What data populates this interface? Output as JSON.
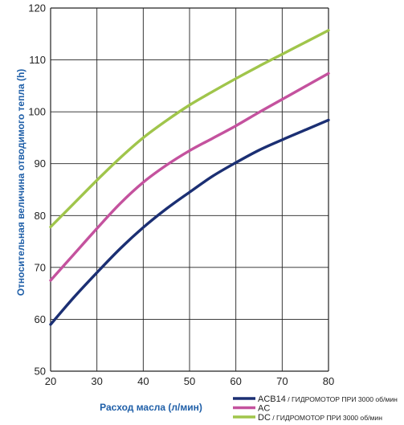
{
  "colors": {
    "axis_title": "#1f5fa8",
    "grid": "#222222",
    "background": "#ffffff"
  },
  "chart_data": {
    "type": "line",
    "title": "",
    "xlabel": "Расход  масла  (л/мин)",
    "ylabel": "Относительная величина отводимого тепла (h)",
    "xlim": [
      20,
      80
    ],
    "ylim": [
      50,
      120
    ],
    "xticks": [
      20,
      30,
      40,
      50,
      60,
      70,
      80
    ],
    "yticks": [
      50,
      60,
      70,
      80,
      90,
      100,
      110,
      120
    ],
    "x": [
      20,
      25,
      30,
      35,
      40,
      45,
      50,
      55,
      60,
      65,
      70,
      75,
      80
    ],
    "grid": true,
    "legend_position": "bottom-right",
    "series": [
      {
        "name": "ACB14",
        "name_suffix": "/ ГИДРОМОТОР ПРИ 3000 об/мин",
        "color": "#1b2f73",
        "values": [
          59,
          64.2,
          69,
          73.6,
          77.7,
          81.3,
          84.5,
          87.6,
          90.2,
          92.6,
          94.6,
          96.5,
          98.4
        ]
      },
      {
        "name": "AC",
        "name_suffix": "",
        "color": "#c4529e",
        "values": [
          67.5,
          72.5,
          77.5,
          82.3,
          86.4,
          89.7,
          92.5,
          94.9,
          97.3,
          99.9,
          102.4,
          104.9,
          107.4
        ]
      },
      {
        "name": "DC",
        "name_suffix": "/ ГИДРОМОТОР ПРИ 3000 об/мин",
        "color": "#a0c54b",
        "values": [
          77.8,
          82.3,
          86.8,
          91.1,
          95,
          98.3,
          101.3,
          103.9,
          106.4,
          108.8,
          111.1,
          113.4,
          115.7
        ]
      }
    ]
  }
}
